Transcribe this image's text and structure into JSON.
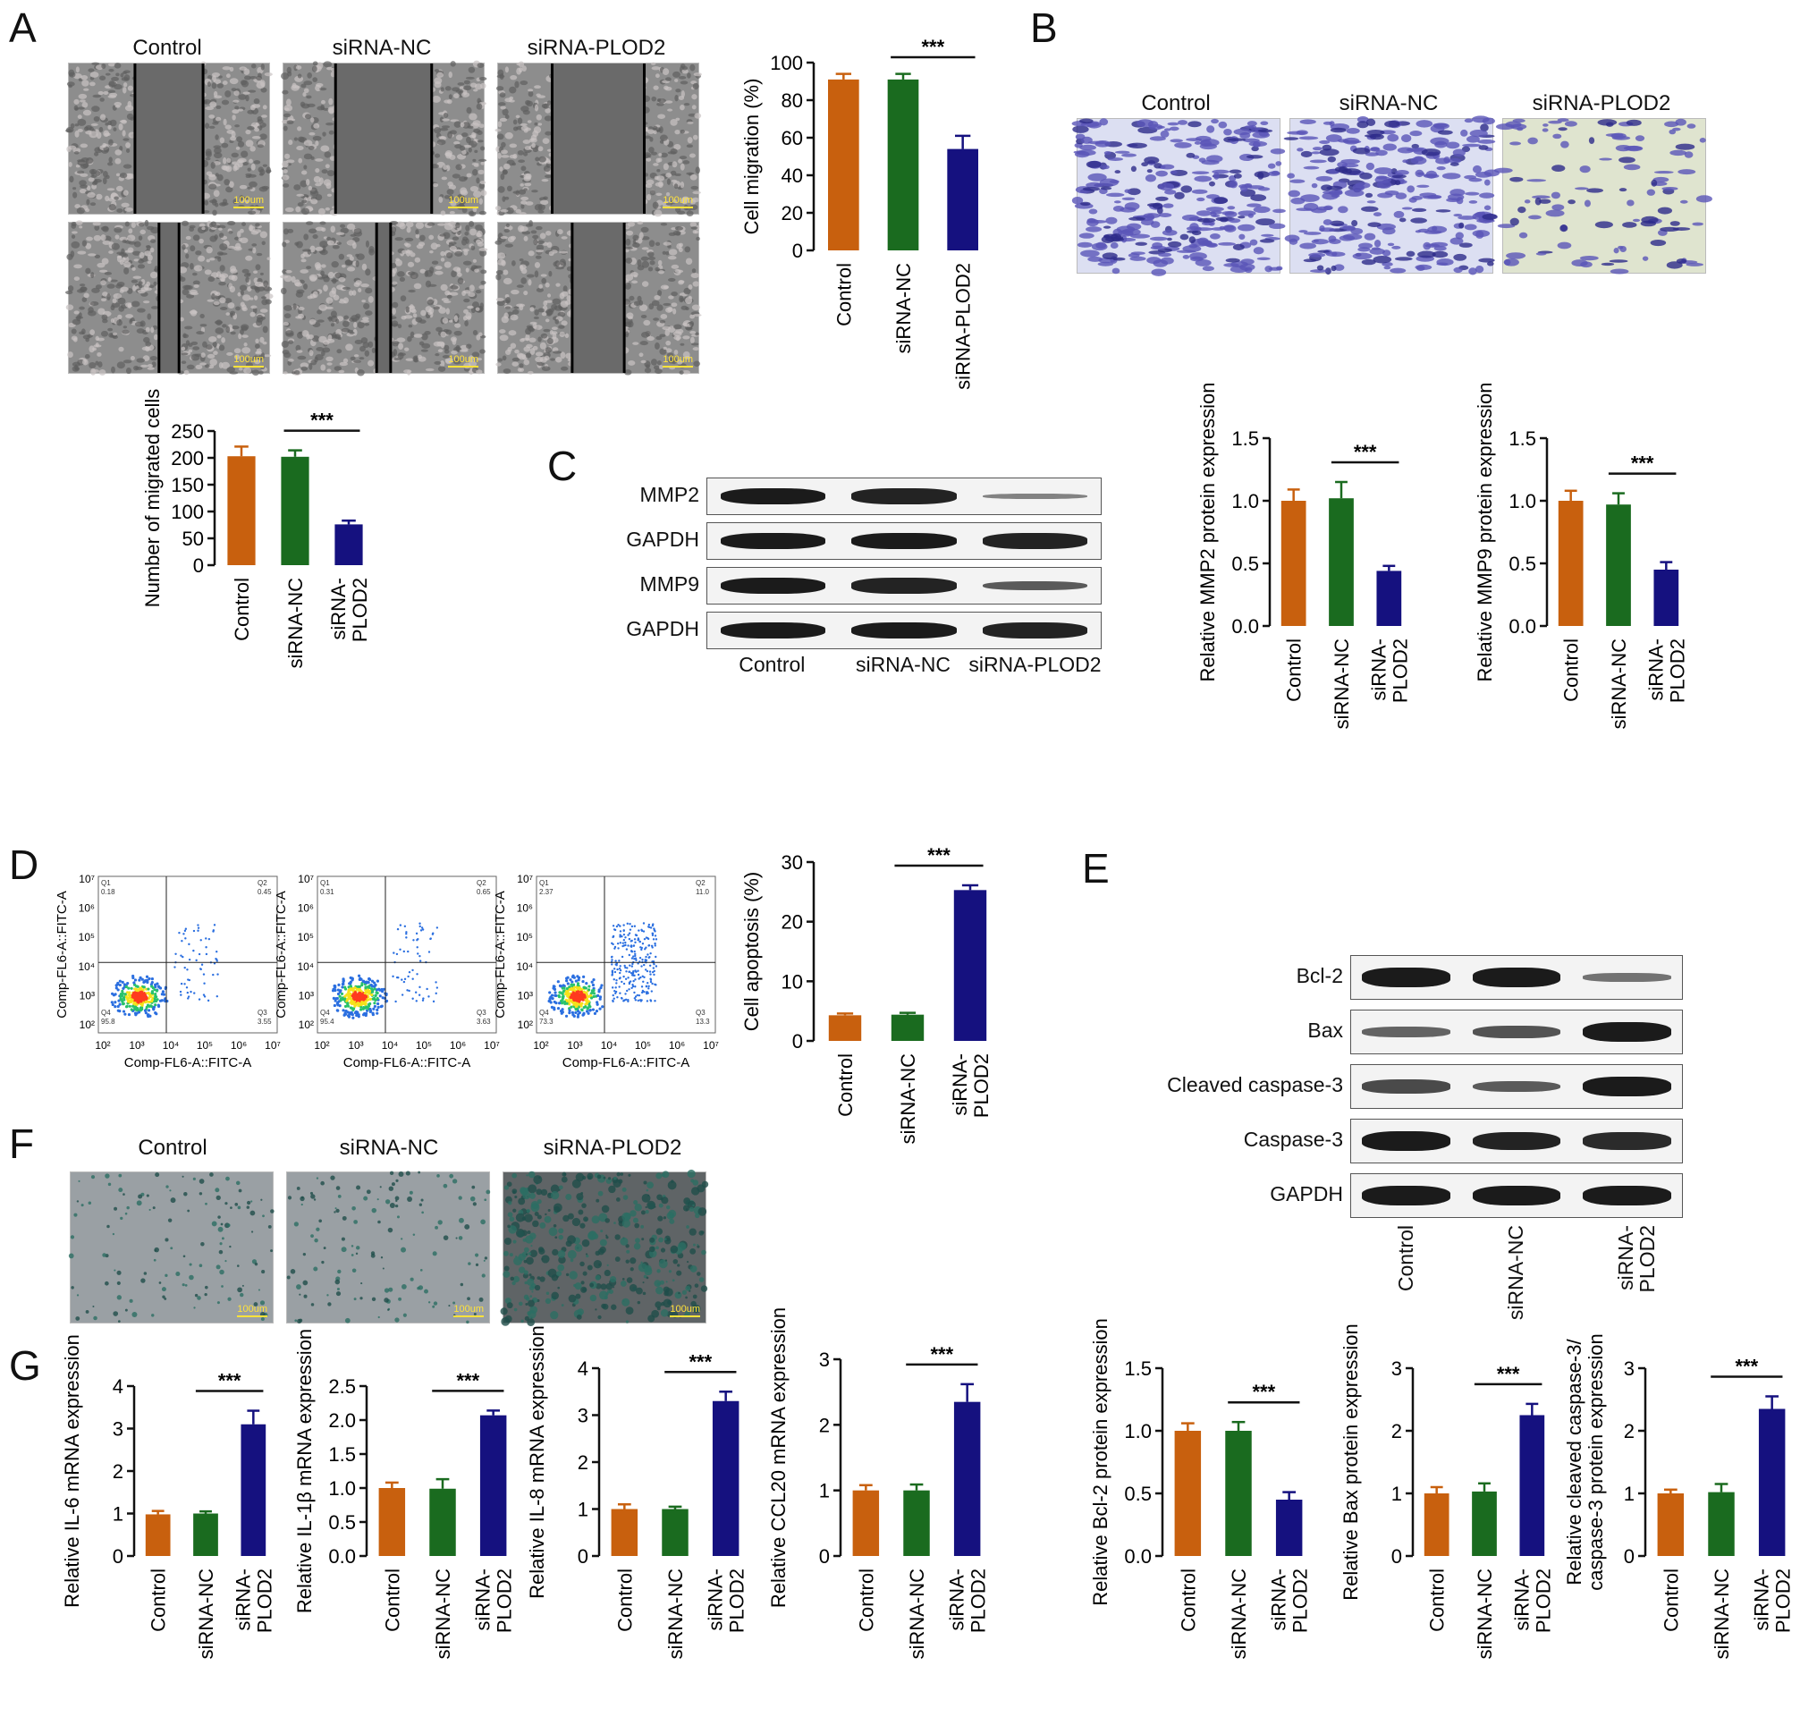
{
  "panels": {
    "A": "A",
    "B": "B",
    "C": "C",
    "D": "D",
    "E": "E",
    "F": "F",
    "G": "G"
  },
  "groups": [
    "Control",
    "siRNA-NC",
    "siRNA-PLOD2"
  ],
  "colors": {
    "control": "#c8600e",
    "nc": "#1a6b1f",
    "plod2": "#15117f",
    "err_control": "#c8600e",
    "err_nc": "#1a6b1f",
    "err_plod2": "#15117f"
  },
  "scale_bar": "100um",
  "significance": "***",
  "blot_C": {
    "rows": [
      "MMP2",
      "GAPDH",
      "MMP9",
      "GAPDH"
    ],
    "lanes": [
      "Control",
      "siRNA-NC",
      "siRNA-PLOD2"
    ]
  },
  "blot_E": {
    "rows": [
      "Bcl-2",
      "Bax",
      "Cleaved caspase-3",
      "Caspase-3",
      "GAPDH"
    ],
    "lanes": [
      "Control",
      "siRNA-NC",
      "siRNA-\nPLOD2"
    ]
  },
  "flow": {
    "xlabel": "Comp-FL6-A::FITC-A",
    "ylabel": "Comp-FL6-A::FITC-A",
    "xticks": [
      "10²",
      "10³",
      "10⁴",
      "10⁵",
      "10⁶",
      "10⁷"
    ],
    "yticks": [
      "10²",
      "10³",
      "10⁴",
      "10⁵",
      "10⁶",
      "10⁷"
    ],
    "quadrants": [
      {
        "q1": "Q1\n0.18",
        "q2": "Q2\n0.45",
        "q3": "Q3\n3.55",
        "q4": "Q4\n95.8"
      },
      {
        "q1": "Q1\n0.31",
        "q2": "Q2\n0.65",
        "q3": "Q3\n3.63",
        "q4": "Q4\n95.4"
      },
      {
        "q1": "Q1\n2.37",
        "q2": "Q2\n11.0",
        "q3": "Q3\n13.3",
        "q4": "Q4\n73.3"
      }
    ]
  },
  "chart_data": [
    {
      "id": "migration",
      "type": "bar",
      "ylabel": "Cell migration (%)",
      "ylim": [
        0,
        100
      ],
      "yticks": [
        0,
        20,
        40,
        60,
        80,
        100
      ],
      "categories": [
        "Control",
        "siRNA-NC",
        "siRNA-PLOD2"
      ],
      "values": [
        91,
        91,
        54
      ],
      "errors": [
        3,
        3,
        7
      ],
      "sig": "***"
    },
    {
      "id": "migrated",
      "type": "bar",
      "ylabel": "Number of migrated cells",
      "ylim": [
        0,
        250
      ],
      "yticks": [
        0,
        50,
        100,
        150,
        200,
        250
      ],
      "categories": [
        "Control",
        "siRNA-NC",
        "siRNA-\nPLOD2"
      ],
      "values": [
        203,
        202,
        76
      ],
      "errors": [
        18,
        12,
        7
      ],
      "sig": "***"
    },
    {
      "id": "mmp2",
      "type": "bar",
      "ylabel": "Relative MMP2 protein expression",
      "ylim": [
        0,
        1.5
      ],
      "yticks": [
        "0.0",
        "0.5",
        "1.0",
        "1.5"
      ],
      "categories": [
        "Control",
        "siRNA-NC",
        "siRNA-\nPLOD2"
      ],
      "values": [
        1.0,
        1.02,
        0.44
      ],
      "errors": [
        0.09,
        0.13,
        0.04
      ],
      "sig": "***"
    },
    {
      "id": "mmp9",
      "type": "bar",
      "ylabel": "Relative MMP9 protein expression",
      "ylim": [
        0,
        1.5
      ],
      "yticks": [
        "0.0",
        "0.5",
        "1.0",
        "1.5"
      ],
      "categories": [
        "Control",
        "siRNA-NC",
        "siRNA-\nPLOD2"
      ],
      "values": [
        1.0,
        0.97,
        0.45
      ],
      "errors": [
        0.08,
        0.09,
        0.06
      ],
      "sig": "***"
    },
    {
      "id": "apoptosis",
      "type": "bar",
      "ylabel": "Cell apoptosis (%)",
      "ylim": [
        0,
        30
      ],
      "yticks": [
        0,
        10,
        20,
        30
      ],
      "categories": [
        "Control",
        "siRNA-NC",
        "siRNA-\nPLOD2"
      ],
      "values": [
        4.3,
        4.4,
        25.3
      ],
      "errors": [
        0.3,
        0.3,
        0.8
      ],
      "sig": "***"
    },
    {
      "id": "il6",
      "type": "bar",
      "ylabel": "Relative IL-6 mRNA expression",
      "ylim": [
        0,
        4
      ],
      "yticks": [
        0,
        1,
        2,
        3,
        4
      ],
      "categories": [
        "Control",
        "siRNA-NC",
        "siRNA-\nPLOD2"
      ],
      "values": [
        0.98,
        1.0,
        3.1
      ],
      "errors": [
        0.08,
        0.05,
        0.32
      ],
      "sig": "***"
    },
    {
      "id": "il1b",
      "type": "bar",
      "ylabel": "Relative IL-1β mRNA expression",
      "ylim": [
        0,
        2.5
      ],
      "yticks": [
        "0.0",
        "0.5",
        "1.0",
        "1.5",
        "2.0",
        "2.5"
      ],
      "categories": [
        "Control",
        "siRNA-NC",
        "siRNA-\nPLOD2"
      ],
      "values": [
        1.0,
        0.99,
        2.07
      ],
      "errors": [
        0.08,
        0.14,
        0.07
      ],
      "sig": "***"
    },
    {
      "id": "il8",
      "type": "bar",
      "ylabel": "Relative IL-8 mRNA expression",
      "ylim": [
        0,
        4
      ],
      "yticks": [
        0,
        1,
        2,
        3,
        4
      ],
      "categories": [
        "Control",
        "siRNA-NC",
        "siRNA-\nPLOD2"
      ],
      "values": [
        1.0,
        1.0,
        3.3
      ],
      "errors": [
        0.1,
        0.05,
        0.2
      ],
      "sig": "***"
    },
    {
      "id": "ccl20",
      "type": "bar",
      "ylabel": "Relative CCL20 mRNA expression",
      "ylim": [
        0,
        3
      ],
      "yticks": [
        0,
        1,
        2,
        3
      ],
      "categories": [
        "Control",
        "siRNA-NC",
        "siRNA-\nPLOD2"
      ],
      "values": [
        1.0,
        1.0,
        2.35
      ],
      "errors": [
        0.08,
        0.09,
        0.27
      ],
      "sig": "***"
    },
    {
      "id": "bcl2",
      "type": "bar",
      "ylabel": "Relative Bcl-2 protein expression",
      "ylim": [
        0,
        1.5
      ],
      "yticks": [
        "0.0",
        "0.5",
        "1.0",
        "1.5"
      ],
      "categories": [
        "Control",
        "siRNA-NC",
        "siRNA-\nPLOD2"
      ],
      "values": [
        1.0,
        1.0,
        0.45
      ],
      "errors": [
        0.06,
        0.07,
        0.06
      ],
      "sig": "***"
    },
    {
      "id": "bax",
      "type": "bar",
      "ylabel": "Relative Bax protein expression",
      "ylim": [
        0,
        3
      ],
      "yticks": [
        0,
        1,
        2,
        3
      ],
      "categories": [
        "Control",
        "siRNA-NC",
        "siRNA-\nPLOD2"
      ],
      "values": [
        1.0,
        1.03,
        2.25
      ],
      "errors": [
        0.1,
        0.13,
        0.18
      ],
      "sig": "***"
    },
    {
      "id": "cleaved",
      "type": "bar",
      "ylabel": "Relative cleaved caspase-3/\ncaspase-3 protein expression",
      "ylim": [
        0,
        3
      ],
      "yticks": [
        0,
        1,
        2,
        3
      ],
      "categories": [
        "Control",
        "siRNA-NC",
        "siRNA-\nPLOD2"
      ],
      "values": [
        1.0,
        1.02,
        2.35
      ],
      "errors": [
        0.06,
        0.13,
        0.2
      ],
      "sig": "***"
    }
  ]
}
